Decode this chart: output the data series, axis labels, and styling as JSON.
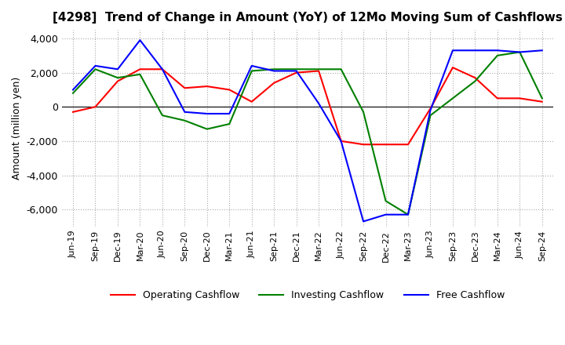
{
  "title": "[4298]  Trend of Change in Amount (YoY) of 12Mo Moving Sum of Cashflows",
  "ylabel": "Amount (million yen)",
  "ylim": [
    -7000,
    4500
  ],
  "yticks": [
    -6000,
    -4000,
    -2000,
    0,
    2000,
    4000
  ],
  "x_labels": [
    "Jun-19",
    "Sep-19",
    "Dec-19",
    "Mar-20",
    "Jun-20",
    "Sep-20",
    "Dec-20",
    "Mar-21",
    "Jun-21",
    "Sep-21",
    "Dec-21",
    "Mar-22",
    "Jun-22",
    "Sep-22",
    "Dec-22",
    "Mar-23",
    "Jun-23",
    "Sep-23",
    "Dec-23",
    "Mar-24",
    "Jun-24",
    "Sep-24"
  ],
  "operating": [
    -300,
    0,
    1500,
    2200,
    2200,
    1100,
    1200,
    1000,
    300,
    1400,
    2000,
    2100,
    -2000,
    -2200,
    -2200,
    -2200,
    -100,
    2300,
    1700,
    500,
    500,
    300
  ],
  "investing": [
    800,
    2200,
    1700,
    1900,
    -500,
    -800,
    -1300,
    -1000,
    2100,
    2200,
    2200,
    2200,
    2200,
    -300,
    -5500,
    -6300,
    -500,
    500,
    1500,
    3000,
    3200,
    500
  ],
  "free": [
    1000,
    2400,
    2200,
    3900,
    2200,
    -300,
    -400,
    -400,
    2400,
    2100,
    2100,
    200,
    -2000,
    -6700,
    -6300,
    -6300,
    -200,
    3300,
    3300,
    3300,
    3200,
    3300
  ],
  "operating_color": "#ff0000",
  "investing_color": "#008000",
  "free_color": "#0000ff",
  "bg_color": "#ffffff",
  "grid_color": "#aaaaaa"
}
